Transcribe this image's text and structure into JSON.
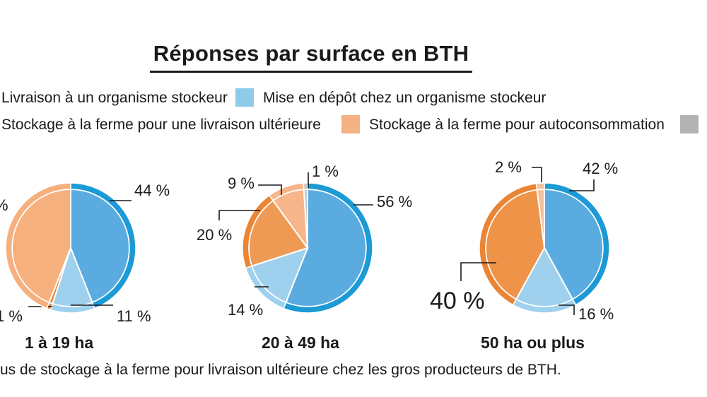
{
  "title": "Réponses par surface en BTH",
  "legend": {
    "items": [
      {
        "label": "Livraison à un organisme stockeur",
        "color": "#1b9ad6"
      },
      {
        "label": "Mise en dépôt chez un organisme stockeur",
        "color": "#8fcaeb"
      },
      {
        "label": "Stockage à la ferme pour une livraison ultérieure",
        "color": "#ef8a3a"
      },
      {
        "label": "Stockage à la ferme pour autoconsommation",
        "color": "#f4b184"
      },
      {
        "label": "",
        "color": "#b3b3b3"
      }
    ]
  },
  "chart_data": [
    {
      "type": "pie",
      "title": "1 à 19 ha",
      "slices": [
        {
          "label": "Livraison à un organisme stockeur",
          "value": 44,
          "text": "44 %",
          "color": "#5aace0",
          "rim": "#1b9ad6"
        },
        {
          "label": "Mise en dépôt chez un organisme stockeur",
          "value": 11,
          "text": "11 %",
          "color": "#9fd1ef",
          "rim": "#9fd1ef"
        },
        {
          "label": "Stockage à la ferme pour une livraison ultérieure",
          "value": 1,
          "text": "1 %",
          "color": "#ef8a3a",
          "rim": "#ef8a3a"
        },
        {
          "label": "Stockage à la ferme pour autoconsommation",
          "value": 44,
          "text": "%",
          "color": "#f6b07e",
          "rim": "#f6b07e"
        }
      ]
    },
    {
      "type": "pie",
      "title": "20 à 49 ha",
      "slices": [
        {
          "label": "Livraison à un organisme stockeur",
          "value": 56,
          "text": "56 %",
          "color": "#5aace0",
          "rim": "#1b9ad6"
        },
        {
          "label": "Mise en dépôt chez un organisme stockeur",
          "value": 14,
          "text": "14 %",
          "color": "#9fd1ef",
          "rim": "#9fd1ef"
        },
        {
          "label": "Stockage à la ferme pour une livraison ultérieure",
          "value": 20,
          "text": "20 %",
          "color": "#ee9a55",
          "rim": "#e98534"
        },
        {
          "label": "Stockage à la ferme pour autoconsommation",
          "value": 9,
          "text": "9 %",
          "color": "#f6b58a",
          "rim": "#f6b58a"
        },
        {
          "label": "",
          "value": 1,
          "text": "1 %",
          "color": "#c9c9c9",
          "rim": "#c9c9c9"
        }
      ]
    },
    {
      "type": "pie",
      "title": "50 ha ou plus",
      "slices": [
        {
          "label": "Livraison à un organisme stockeur",
          "value": 42,
          "text": "42 %",
          "color": "#5aace0",
          "rim": "#1b9ad6"
        },
        {
          "label": "Mise en dépôt chez un organisme stockeur",
          "value": 16,
          "text": "16 %",
          "color": "#9fd1ef",
          "rim": "#9fd1ef"
        },
        {
          "label": "Stockage à la ferme pour une livraison ultérieure",
          "value": 40,
          "text": "40 %",
          "color": "#ef9348",
          "rim": "#e98534"
        },
        {
          "label": "Stockage à la ferme pour autoconsommation",
          "value": 2,
          "text": "2 %",
          "color": "#f6c29c",
          "rim": "#f6c29c"
        }
      ]
    }
  ],
  "footnote": "us de stockage à la ferme pour livraison ultérieure chez les gros producteurs de BTH."
}
